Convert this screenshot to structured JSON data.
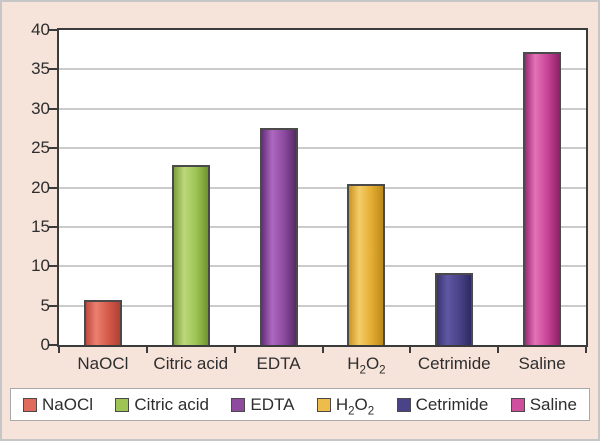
{
  "chart_data": {
    "type": "bar",
    "title": "",
    "xlabel": "",
    "ylabel": "",
    "categories": [
      "NaOCl",
      "Citric acid",
      "EDTA",
      "H2O2",
      "Cetrimide",
      "Saline"
    ],
    "category_labels_html": [
      "NaOCl",
      "Citric acid",
      "EDTA",
      "H<sub>2</sub>O<sub>2</sub>",
      "Cetrimide",
      "Saline"
    ],
    "values": [
      5.7,
      22.9,
      27.5,
      20.5,
      9.1,
      37.2
    ],
    "ylim": [
      0,
      40
    ],
    "yticks": [
      0,
      5,
      10,
      15,
      20,
      25,
      30,
      35,
      40
    ],
    "grid": true,
    "legend_position": "bottom",
    "legend_entries": [
      "NaOCl",
      "Citric acid",
      "EDTA",
      "H2O2",
      "Cetrimide",
      "Saline"
    ],
    "legend_entries_html": [
      "NaOCl",
      "Citric acid",
      "EDTA",
      "H<sub>2</sub>O<sub>2</sub>",
      "Cetrimide",
      "Saline"
    ],
    "bar_gradients": [
      [
        "#bf4a3f",
        "#ea8170",
        "#d65a49",
        "#b04136"
      ],
      [
        "#7f9f3c",
        "#bcd87a",
        "#9dc455",
        "#72932f"
      ],
      [
        "#66307b",
        "#ad68bf",
        "#8d4a9f",
        "#572a66"
      ],
      [
        "#c9941f",
        "#f3cd69",
        "#e6ae32",
        "#bb8b1c"
      ],
      [
        "#39346f",
        "#5f58a4",
        "#4a4389",
        "#2e2a62"
      ],
      [
        "#9e2876",
        "#e273b5",
        "#c94598",
        "#8f2269"
      ]
    ],
    "legend_swatch_colors": [
      "#e06a5b",
      "#9dc455",
      "#8d4a9f",
      "#eebc4a",
      "#4a4389",
      "#cf4f9e"
    ]
  },
  "colors": {
    "background": "#f6e3da",
    "plot_background": "#ffffff",
    "grid": "#cbcbcb",
    "axis": "#3b3b3b",
    "text": "#2e2e2e",
    "frame_border": "#c6c6c6",
    "legend_background": "#ffffff",
    "legend_border": "#a9a9a9",
    "bar_outline": "#4a4a4a"
  }
}
